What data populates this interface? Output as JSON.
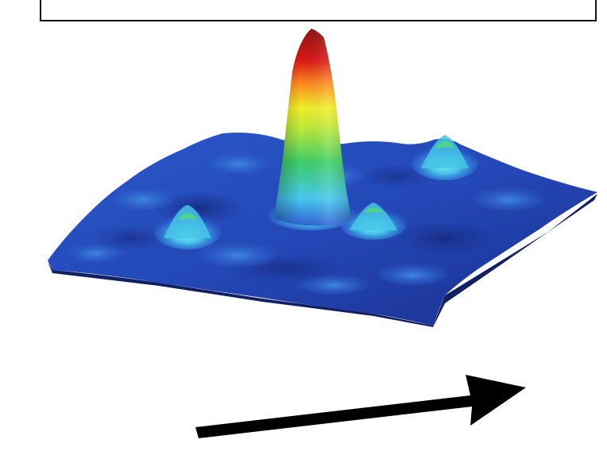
{
  "figure": {
    "kind": "3d-surface-plot",
    "colormap": [
      "#1a2f8e",
      "#2e5fd0",
      "#46c8f0",
      "#3ecf6a",
      "#f2ef2a",
      "#ff8a1e",
      "#d81616",
      "#8e1010"
    ],
    "peaks": {
      "central": "tall-red-peak",
      "satellites": [
        "left-cyan-peak",
        "front-green-peak",
        "right-back-peak"
      ]
    },
    "arrow_color": "#000000",
    "label_box_text": ""
  }
}
